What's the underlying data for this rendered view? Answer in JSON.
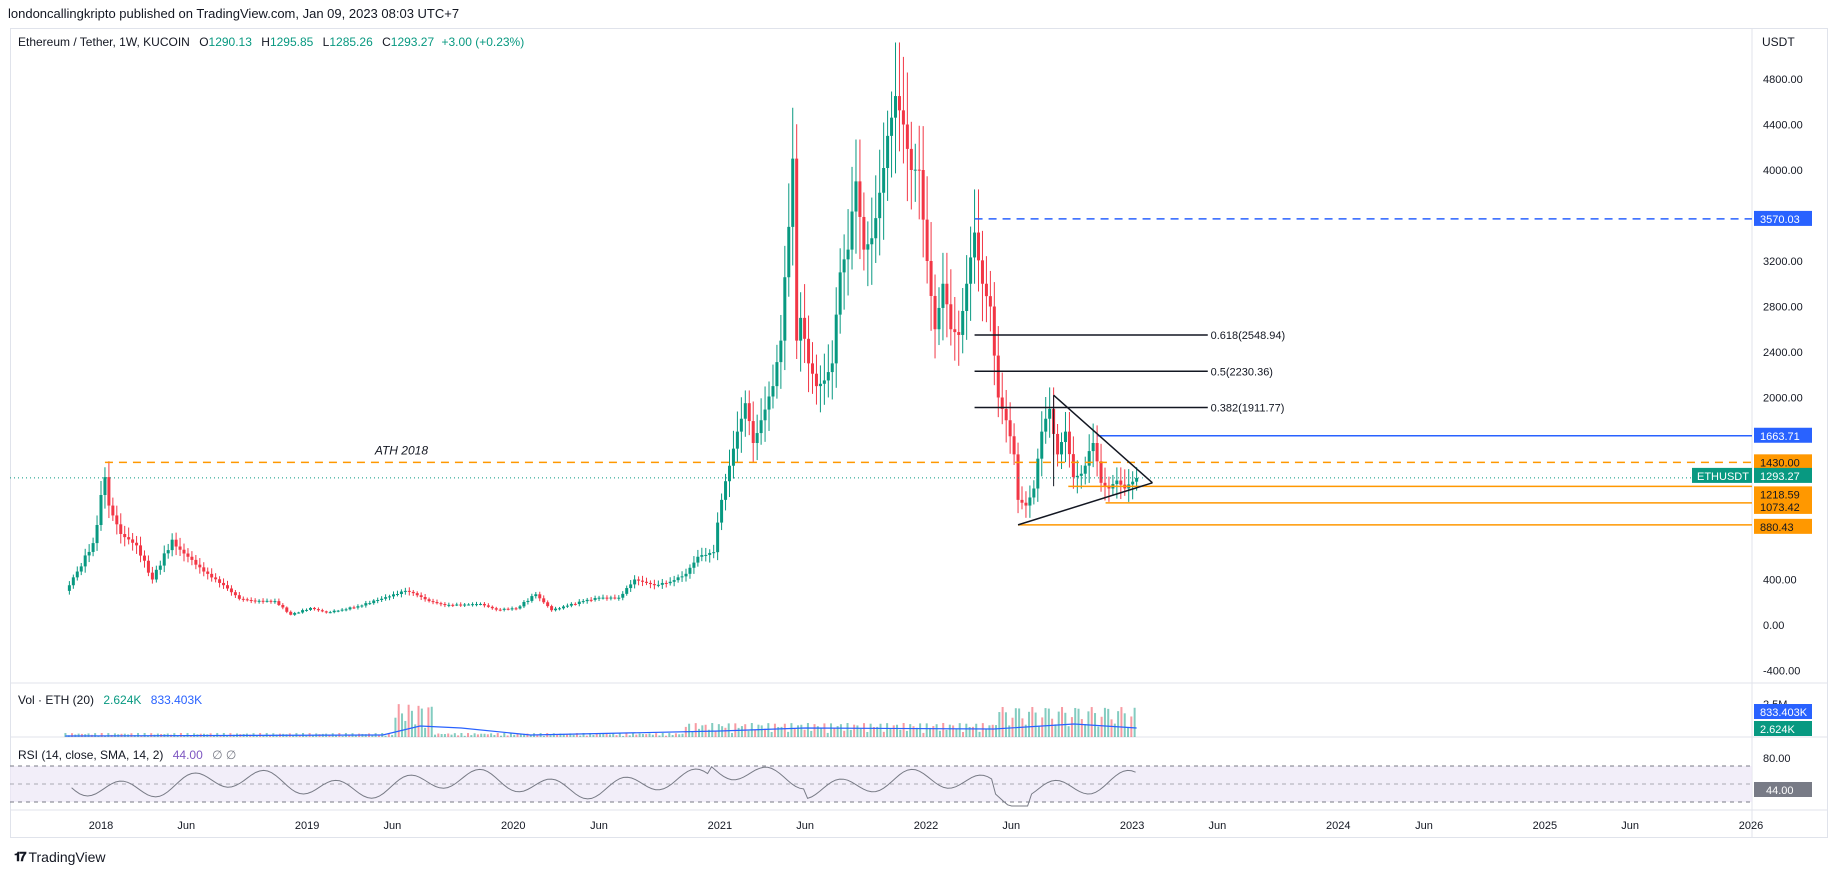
{
  "publisher_line": "londoncallingkripto published on TradingView.com, Jan 09, 2023 08:03 UTC+7",
  "header": {
    "symbol": "Ethereum / Tether, 1W, KUCOIN",
    "open_label": "O",
    "open": "1290.13",
    "high_label": "H",
    "high": "1295.85",
    "low_label": "L",
    "low": "1285.26",
    "close_label": "C",
    "close": "1293.27",
    "change": "+3.00 (+0.23%)"
  },
  "currency": "USDT",
  "volume": {
    "title": "Vol · ETH (20)",
    "value1": "2.624K",
    "value2": "833.403K",
    "axis_tick": "2.5M",
    "badge_ma": "833.403K",
    "badge_vol": "2.624K"
  },
  "rsi": {
    "title": "RSI (14, close, SMA, 14, 2)",
    "value": "44.00",
    "extra": "∅ ∅",
    "axis_tick": "80.00",
    "badge": "44.00"
  },
  "footer": {
    "brand": "TradingView",
    "logo": "TV-logo-icon"
  },
  "colors": {
    "up": "#089981",
    "down": "#f23645",
    "fib": "#131722",
    "resistance": "#2962ff",
    "support": "#ff9800",
    "rsi_line": "#787b86",
    "vol_ma": "#2962ff"
  },
  "annotations": {
    "ath_label": "ATH 2018",
    "fib": [
      {
        "label": "0.618(2548.94)",
        "price": 2548.94
      },
      {
        "label": "0.5(2230.36)",
        "price": 2230.36
      },
      {
        "label": "0.382(1911.77)",
        "price": 1911.77
      }
    ],
    "levels": [
      {
        "label": "3570.03",
        "price": 3570.03,
        "color": "#2962ff",
        "dashed": true
      },
      {
        "label": "1663.71",
        "price": 1663.71,
        "color": "#2962ff",
        "dashed": false
      },
      {
        "label": "1430.00",
        "price": 1430.0,
        "color": "#ff9800",
        "dashed": true
      },
      {
        "label": "1218.59",
        "price": 1218.59,
        "color": "#ff9800",
        "dashed": false
      },
      {
        "label": "1073.42",
        "price": 1073.42,
        "color": "#ff9800",
        "dashed": false
      },
      {
        "label": "880.43",
        "price": 880.43,
        "color": "#ff9800",
        "dashed": false
      }
    ],
    "current_price_tag": "ETHUSDT",
    "current_price": "1293.27"
  },
  "chart_data": {
    "type": "candlestick",
    "title": "Ethereum / Tether, 1W, KUCOIN",
    "ylabel": "USDT",
    "y_ticks": [
      "4800.00",
      "4400.00",
      "4000.00",
      "3200.00",
      "2800.00",
      "2400.00",
      "2000.00",
      "400.00",
      "0.00",
      "-400.00"
    ],
    "y_tick_values": [
      4800,
      4400,
      4000,
      3200,
      2800,
      2400,
      2000,
      400,
      0,
      -400
    ],
    "ylim": [
      -450,
      5000
    ],
    "x_ticks": [
      "2018",
      "Jun",
      "2019",
      "Jun",
      "2020",
      "Jun",
      "2021",
      "Jun",
      "2022",
      "Jun",
      "2023",
      "Jun",
      "2024",
      "Jun",
      "2025",
      "Jun",
      "2026"
    ],
    "x_tick_dates": [
      "2018-01-01",
      "2018-06-01",
      "2019-01-01",
      "2019-06-01",
      "2020-01-01",
      "2020-06-01",
      "2021-01-01",
      "2021-06-01",
      "2022-01-01",
      "2022-06-01",
      "2023-01-01",
      "2023-06-01",
      "2024-01-01",
      "2024-06-01",
      "2025-01-01",
      "2025-06-01",
      "2026-01-01"
    ],
    "series": [
      {
        "name": "ETHUSDT",
        "close": [
          [
            "2017-10-30",
            300
          ],
          [
            "2017-11-20",
            470
          ],
          [
            "2017-12-18",
            720
          ],
          [
            "2018-01-08",
            1300
          ],
          [
            "2018-01-15",
            1050
          ],
          [
            "2018-02-05",
            800
          ],
          [
            "2018-03-05",
            700
          ],
          [
            "2018-04-02",
            400
          ],
          [
            "2018-05-07",
            750
          ],
          [
            "2018-05-14",
            690
          ],
          [
            "2018-06-04",
            600
          ],
          [
            "2018-07-02",
            470
          ],
          [
            "2018-08-06",
            350
          ],
          [
            "2018-09-03",
            230
          ],
          [
            "2018-10-01",
            210
          ],
          [
            "2018-11-05",
            210
          ],
          [
            "2018-12-03",
            90
          ],
          [
            "2019-01-07",
            150
          ],
          [
            "2019-02-04",
            110
          ],
          [
            "2019-03-04",
            135
          ],
          [
            "2019-04-01",
            165
          ],
          [
            "2019-05-06",
            220
          ],
          [
            "2019-06-24",
            300
          ],
          [
            "2019-07-08",
            280
          ],
          [
            "2019-08-05",
            210
          ],
          [
            "2019-09-02",
            175
          ],
          [
            "2019-10-07",
            180
          ],
          [
            "2019-11-04",
            185
          ],
          [
            "2019-12-02",
            135
          ],
          [
            "2020-01-06",
            145
          ],
          [
            "2020-02-10",
            270
          ],
          [
            "2020-03-09",
            130
          ],
          [
            "2020-04-06",
            170
          ],
          [
            "2020-05-04",
            210
          ],
          [
            "2020-06-01",
            240
          ],
          [
            "2020-07-06",
            240
          ],
          [
            "2020-08-03",
            400
          ],
          [
            "2020-09-07",
            350
          ],
          [
            "2020-10-05",
            380
          ],
          [
            "2020-11-02",
            450
          ],
          [
            "2020-11-23",
            600
          ],
          [
            "2020-12-21",
            640
          ],
          [
            "2021-01-04",
            1100
          ],
          [
            "2021-01-18",
            1400
          ],
          [
            "2021-02-01",
            1700
          ],
          [
            "2021-02-15",
            1950
          ],
          [
            "2021-03-01",
            1600
          ],
          [
            "2021-03-15",
            1800
          ],
          [
            "2021-04-05",
            2100
          ],
          [
            "2021-04-19",
            2500
          ],
          [
            "2021-05-03",
            3500
          ],
          [
            "2021-05-10",
            4100
          ],
          [
            "2021-05-17",
            2500
          ],
          [
            "2021-05-24",
            2700
          ],
          [
            "2021-06-07",
            2300
          ],
          [
            "2021-06-21",
            2100
          ],
          [
            "2021-07-05",
            2150
          ],
          [
            "2021-07-19",
            2300
          ],
          [
            "2021-08-02",
            3100
          ],
          [
            "2021-08-16",
            3300
          ],
          [
            "2021-08-30",
            3900
          ],
          [
            "2021-09-13",
            3300
          ],
          [
            "2021-09-27",
            3400
          ],
          [
            "2021-10-11",
            3800
          ],
          [
            "2021-10-25",
            4300
          ],
          [
            "2021-11-08",
            4650
          ],
          [
            "2021-11-22",
            4400
          ],
          [
            "2021-12-06",
            4000
          ],
          [
            "2021-12-20",
            4000
          ],
          [
            "2022-01-03",
            3200
          ],
          [
            "2022-01-17",
            2600
          ],
          [
            "2022-01-31",
            3000
          ],
          [
            "2022-02-14",
            2600
          ],
          [
            "2022-02-28",
            2550
          ],
          [
            "2022-03-14",
            3000
          ],
          [
            "2022-03-28",
            3450
          ],
          [
            "2022-04-11",
            3000
          ],
          [
            "2022-04-25",
            2800
          ],
          [
            "2022-05-09",
            2000
          ],
          [
            "2022-05-23",
            1800
          ],
          [
            "2022-06-06",
            1500
          ],
          [
            "2022-06-13",
            1100
          ],
          [
            "2022-06-27",
            1050
          ],
          [
            "2022-07-11",
            1200
          ],
          [
            "2022-07-25",
            1700
          ],
          [
            "2022-08-08",
            1900
          ],
          [
            "2022-08-22",
            1500
          ],
          [
            "2022-09-05",
            1700
          ],
          [
            "2022-09-19",
            1300
          ],
          [
            "2022-10-03",
            1330
          ],
          [
            "2022-10-24",
            1600
          ],
          [
            "2022-11-07",
            1250
          ],
          [
            "2022-11-21",
            1200
          ],
          [
            "2022-12-05",
            1270
          ],
          [
            "2022-12-19",
            1200
          ],
          [
            "2023-01-02",
            1260
          ],
          [
            "2023-01-09",
            1293.27
          ]
        ]
      }
    ],
    "rsi_axis": [
      "80.00",
      "44.00"
    ],
    "grid": true,
    "legend": "top-left"
  }
}
